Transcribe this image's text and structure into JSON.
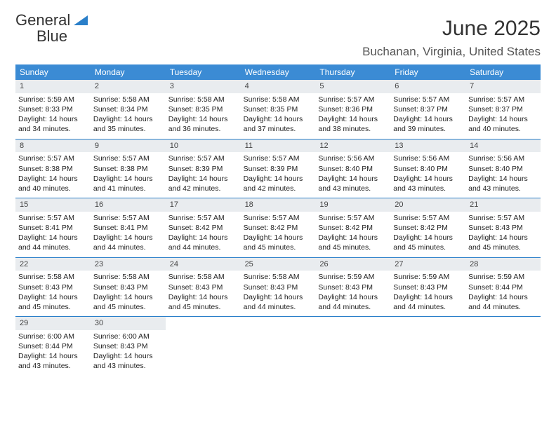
{
  "logo": {
    "word1": "General",
    "word2": "Blue"
  },
  "header": {
    "month_title": "June 2025",
    "location": "Buchanan, Virginia, United States"
  },
  "colors": {
    "header_bg": "#3b8bd4",
    "daynum_bg": "#e9ecef",
    "week_border": "#2a7fc9",
    "logo_blue": "#2a7fc9"
  },
  "weekdays": [
    "Sunday",
    "Monday",
    "Tuesday",
    "Wednesday",
    "Thursday",
    "Friday",
    "Saturday"
  ],
  "days": [
    {
      "n": 1,
      "sr": "5:59 AM",
      "ss": "8:33 PM",
      "dl": "14 hours and 34 minutes."
    },
    {
      "n": 2,
      "sr": "5:58 AM",
      "ss": "8:34 PM",
      "dl": "14 hours and 35 minutes."
    },
    {
      "n": 3,
      "sr": "5:58 AM",
      "ss": "8:35 PM",
      "dl": "14 hours and 36 minutes."
    },
    {
      "n": 4,
      "sr": "5:58 AM",
      "ss": "8:35 PM",
      "dl": "14 hours and 37 minutes."
    },
    {
      "n": 5,
      "sr": "5:57 AM",
      "ss": "8:36 PM",
      "dl": "14 hours and 38 minutes."
    },
    {
      "n": 6,
      "sr": "5:57 AM",
      "ss": "8:37 PM",
      "dl": "14 hours and 39 minutes."
    },
    {
      "n": 7,
      "sr": "5:57 AM",
      "ss": "8:37 PM",
      "dl": "14 hours and 40 minutes."
    },
    {
      "n": 8,
      "sr": "5:57 AM",
      "ss": "8:38 PM",
      "dl": "14 hours and 40 minutes."
    },
    {
      "n": 9,
      "sr": "5:57 AM",
      "ss": "8:38 PM",
      "dl": "14 hours and 41 minutes."
    },
    {
      "n": 10,
      "sr": "5:57 AM",
      "ss": "8:39 PM",
      "dl": "14 hours and 42 minutes."
    },
    {
      "n": 11,
      "sr": "5:57 AM",
      "ss": "8:39 PM",
      "dl": "14 hours and 42 minutes."
    },
    {
      "n": 12,
      "sr": "5:56 AM",
      "ss": "8:40 PM",
      "dl": "14 hours and 43 minutes."
    },
    {
      "n": 13,
      "sr": "5:56 AM",
      "ss": "8:40 PM",
      "dl": "14 hours and 43 minutes."
    },
    {
      "n": 14,
      "sr": "5:56 AM",
      "ss": "8:40 PM",
      "dl": "14 hours and 43 minutes."
    },
    {
      "n": 15,
      "sr": "5:57 AM",
      "ss": "8:41 PM",
      "dl": "14 hours and 44 minutes."
    },
    {
      "n": 16,
      "sr": "5:57 AM",
      "ss": "8:41 PM",
      "dl": "14 hours and 44 minutes."
    },
    {
      "n": 17,
      "sr": "5:57 AM",
      "ss": "8:42 PM",
      "dl": "14 hours and 44 minutes."
    },
    {
      "n": 18,
      "sr": "5:57 AM",
      "ss": "8:42 PM",
      "dl": "14 hours and 45 minutes."
    },
    {
      "n": 19,
      "sr": "5:57 AM",
      "ss": "8:42 PM",
      "dl": "14 hours and 45 minutes."
    },
    {
      "n": 20,
      "sr": "5:57 AM",
      "ss": "8:42 PM",
      "dl": "14 hours and 45 minutes."
    },
    {
      "n": 21,
      "sr": "5:57 AM",
      "ss": "8:43 PM",
      "dl": "14 hours and 45 minutes."
    },
    {
      "n": 22,
      "sr": "5:58 AM",
      "ss": "8:43 PM",
      "dl": "14 hours and 45 minutes."
    },
    {
      "n": 23,
      "sr": "5:58 AM",
      "ss": "8:43 PM",
      "dl": "14 hours and 45 minutes."
    },
    {
      "n": 24,
      "sr": "5:58 AM",
      "ss": "8:43 PM",
      "dl": "14 hours and 45 minutes."
    },
    {
      "n": 25,
      "sr": "5:58 AM",
      "ss": "8:43 PM",
      "dl": "14 hours and 44 minutes."
    },
    {
      "n": 26,
      "sr": "5:59 AM",
      "ss": "8:43 PM",
      "dl": "14 hours and 44 minutes."
    },
    {
      "n": 27,
      "sr": "5:59 AM",
      "ss": "8:43 PM",
      "dl": "14 hours and 44 minutes."
    },
    {
      "n": 28,
      "sr": "5:59 AM",
      "ss": "8:44 PM",
      "dl": "14 hours and 44 minutes."
    },
    {
      "n": 29,
      "sr": "6:00 AM",
      "ss": "8:44 PM",
      "dl": "14 hours and 43 minutes."
    },
    {
      "n": 30,
      "sr": "6:00 AM",
      "ss": "8:43 PM",
      "dl": "14 hours and 43 minutes."
    }
  ],
  "labels": {
    "sunrise_prefix": "Sunrise: ",
    "sunset_prefix": "Sunset: ",
    "daylight_prefix": "Daylight: "
  },
  "layout": {
    "cols": 7,
    "start_offset": 0,
    "total_cells": 35
  }
}
